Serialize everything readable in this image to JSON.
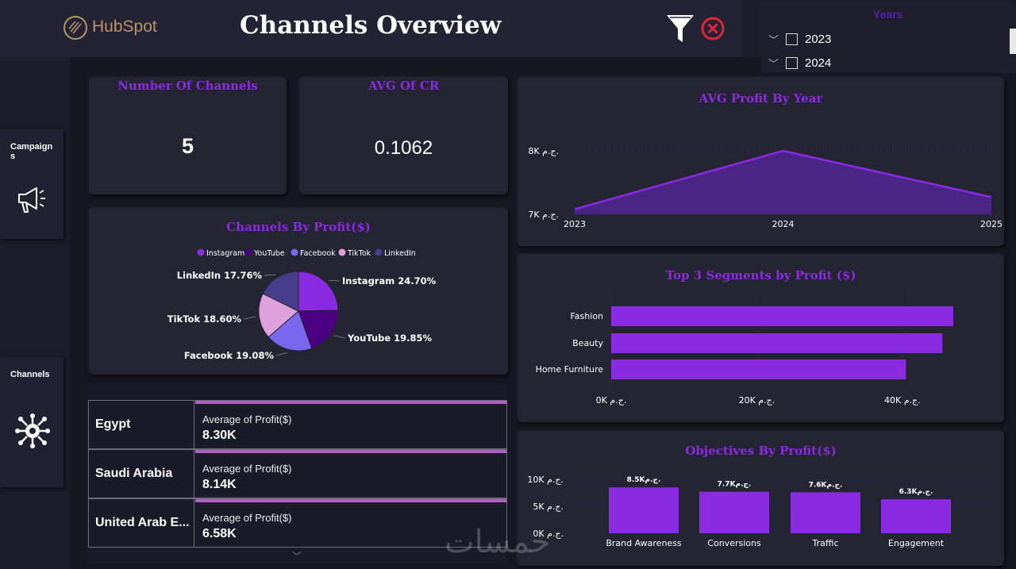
{
  "header": {
    "logo_text": "HubSpot",
    "title": "Channels Overview",
    "filter_icon": "funnel-icon",
    "close_icon": "close-circle-icon"
  },
  "nav": {
    "campaigns_label": "Campaign s",
    "campaigns_icon": "megaphone-icon",
    "channels_label": "Channels",
    "channels_icon": "network-hub-icon"
  },
  "slicer": {
    "title": "Years",
    "items": [
      {
        "label": "2023",
        "checked": false
      },
      {
        "label": "2024",
        "checked": false
      }
    ]
  },
  "kpis": {
    "channels_title": "Number Of Channels",
    "channels_value": "5",
    "cr_title": "AVG Of CR",
    "cr_value": "0.1062"
  },
  "countries": {
    "rows": [
      {
        "name": "Egypt",
        "label": "Average of Profit($)",
        "value": "8.30K"
      },
      {
        "name": "Saudi Arabia",
        "label": "Average of Profit($)",
        "value": "8.14K"
      },
      {
        "name": "United Arab E...",
        "label": "Average of Profit($)",
        "value": "6.58K"
      }
    ]
  },
  "watermark": "خمسات",
  "colors": {
    "accent": "#8a2be2",
    "background": "#171623",
    "card": "#252433"
  },
  "chart_data": [
    {
      "id": "pie",
      "type": "pie",
      "title": "Channels By Profit($)",
      "legend": [
        "Instagram",
        "YouTube",
        "Facebook",
        "TikTok",
        "LinkedIn"
      ],
      "slices": [
        {
          "name": "Instagram",
          "value": 24.7,
          "label": "Instagram 24.70%",
          "color": "#8a2be2"
        },
        {
          "name": "YouTube",
          "value": 19.85,
          "label": "YouTube 19.85%",
          "color": "#4b0082"
        },
        {
          "name": "Facebook",
          "value": 19.08,
          "label": "Facebook 19.08%",
          "color": "#7b68ee"
        },
        {
          "name": "TikTok",
          "value": 18.6,
          "label": "TikTok 18.60%",
          "color": "#dda0dd"
        },
        {
          "name": "LinkedIn",
          "value": 17.76,
          "label": "LinkedIn 17.76%",
          "color": "#483d8b"
        }
      ]
    },
    {
      "id": "area",
      "type": "area",
      "title": "AVG Profit By Year",
      "x": [
        "2023",
        "2024",
        "2025"
      ],
      "values": [
        7080,
        8000,
        7270
      ],
      "ylim": [
        7000,
        8000
      ],
      "yticks": [
        {
          "v": 8000,
          "label": "8K ج.م."
        },
        {
          "v": 7000,
          "label": "7K ج.م."
        }
      ]
    },
    {
      "id": "hbar",
      "type": "bar",
      "orientation": "horizontal",
      "title": "Top 3 Segments by Profit ($)",
      "categories": [
        "Fashion",
        "Beauty",
        "Home Furniture"
      ],
      "values": [
        47000,
        45500,
        40500
      ],
      "xlim": [
        0,
        47000
      ],
      "xticks": [
        {
          "v": 0,
          "label": "0K ج.م."
        },
        {
          "v": 20000,
          "label": "20K ج.م."
        },
        {
          "v": 40000,
          "label": "40K ج.م."
        }
      ]
    },
    {
      "id": "vbar",
      "type": "bar",
      "title": "Objectives By Profit($)",
      "categories": [
        "Brand Awareness",
        "Conversions",
        "Traffic",
        "Engagement"
      ],
      "values": [
        8500,
        7700,
        7600,
        6300
      ],
      "data_labels": [
        "8.5Kج.م.",
        "7.7Kج.م.",
        "7.6Kج.م.",
        "6.3Kج.م."
      ],
      "ylim": [
        0,
        10000
      ],
      "yticks": [
        {
          "v": 10000,
          "label": "10K ج.م."
        },
        {
          "v": 5000,
          "label": "5K ج.م."
        },
        {
          "v": 0,
          "label": "0K ج.م."
        }
      ]
    }
  ]
}
